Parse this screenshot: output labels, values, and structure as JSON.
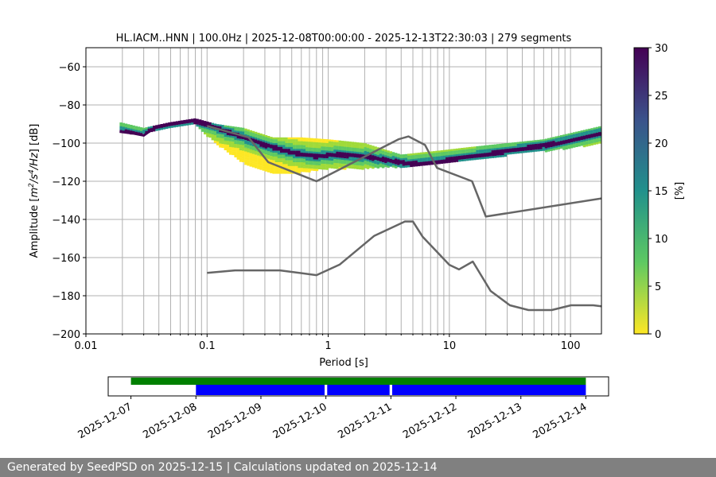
{
  "chart_data": [
    {
      "type": "heatmap",
      "title": "HL.IACM..HNN | 100.0Hz | 2025-12-08T00:00:00 - 2025-12-13T22:30:03 | 279 segments",
      "xlabel": "Period [s]",
      "ylabel_parts": [
        "Amplitude [",
        "m",
        "2",
        "/",
        "s",
        "4",
        "/",
        "Hz",
        "] [dB]"
      ],
      "x_scale": "log",
      "xlim": [
        0.01,
        180
      ],
      "ylim": [
        -200,
        -50
      ],
      "x_ticks": [
        {
          "value": 0.01,
          "label": "0.01"
        },
        {
          "value": 0.1,
          "label": "0.1"
        },
        {
          "value": 1,
          "label": "1"
        },
        {
          "value": 10,
          "label": "10"
        },
        {
          "value": 100,
          "label": "100"
        }
      ],
      "y_ticks": [
        {
          "value": -60,
          "label": "−60"
        },
        {
          "value": -80,
          "label": "−80"
        },
        {
          "value": -100,
          "label": "−100"
        },
        {
          "value": -120,
          "label": "−120"
        },
        {
          "value": -140,
          "label": "−140"
        },
        {
          "value": -160,
          "label": "−160"
        },
        {
          "value": -180,
          "label": "−180"
        },
        {
          "value": -200,
          "label": "−200"
        }
      ],
      "grid": "vertical lines at decade subdivisions, horizontal lines at y ticks",
      "colormap": "viridis_r",
      "colorbar": {
        "label": "[%]",
        "range": [
          0,
          30
        ],
        "ticks": [
          {
            "value": 0,
            "label": "0"
          },
          {
            "value": 5,
            "label": "5"
          },
          {
            "value": 10,
            "label": "10"
          },
          {
            "value": 15,
            "label": "15"
          },
          {
            "value": 20,
            "label": "20"
          },
          {
            "value": 25,
            "label": "25"
          },
          {
            "value": 30,
            "label": "30"
          }
        ]
      },
      "mode_curve": [
        {
          "period": 0.019,
          "db": -94
        },
        {
          "period": 0.025,
          "db": -95
        },
        {
          "period": 0.03,
          "db": -96
        },
        {
          "period": 0.035,
          "db": -93
        },
        {
          "period": 0.04,
          "db": -91
        },
        {
          "period": 0.05,
          "db": -90
        },
        {
          "period": 0.06,
          "db": -89
        },
        {
          "period": 0.075,
          "db": -88
        },
        {
          "period": 0.1,
          "db": -90
        },
        {
          "period": 0.13,
          "db": -93
        },
        {
          "period": 0.2,
          "db": -97
        },
        {
          "period": 0.3,
          "db": -101
        },
        {
          "period": 0.5,
          "db": -105
        },
        {
          "period": 0.8,
          "db": -107
        },
        {
          "period": 1.2,
          "db": -106
        },
        {
          "period": 2,
          "db": -107
        },
        {
          "period": 3,
          "db": -109
        },
        {
          "period": 5,
          "db": -111
        },
        {
          "period": 8,
          "db": -110
        },
        {
          "period": 12,
          "db": -108
        },
        {
          "period": 20,
          "db": -106
        },
        {
          "period": 40,
          "db": -103
        },
        {
          "period": 80,
          "db": -100
        },
        {
          "period": 180,
          "db": -95
        }
      ],
      "spread_band": [
        {
          "period": 0.019,
          "lower": -94,
          "upper": -89
        },
        {
          "period": 0.03,
          "lower": -95,
          "upper": -92
        },
        {
          "period": 0.05,
          "lower": -92,
          "upper": -89
        },
        {
          "period": 0.08,
          "lower": -90,
          "upper": -87
        },
        {
          "period": 0.12,
          "lower": -100,
          "upper": -90
        },
        {
          "period": 0.2,
          "lower": -110,
          "upper": -92
        },
        {
          "period": 0.35,
          "lower": -116,
          "upper": -97
        },
        {
          "period": 0.6,
          "lower": -115,
          "upper": -97
        },
        {
          "period": 1,
          "lower": -113,
          "upper": -98
        },
        {
          "period": 2,
          "lower": -113,
          "upper": -100
        },
        {
          "period": 4,
          "lower": -112,
          "upper": -106
        },
        {
          "period": 8,
          "lower": -111,
          "upper": -104
        },
        {
          "period": 15,
          "lower": -109,
          "upper": -102
        },
        {
          "period": 30,
          "lower": -106,
          "upper": -100
        },
        {
          "period": 60,
          "lower": -104,
          "upper": -98
        },
        {
          "period": 180,
          "lower": -100,
          "upper": -91
        }
      ],
      "nhnm": [
        {
          "period": 0.1,
          "db": -91
        },
        {
          "period": 0.22,
          "db": -97
        },
        {
          "period": 0.32,
          "db": -110
        },
        {
          "period": 0.8,
          "db": -120
        },
        {
          "period": 3.8,
          "db": -98
        },
        {
          "period": 4.6,
          "db": -96.5
        },
        {
          "period": 6.3,
          "db": -101
        },
        {
          "period": 7.9,
          "db": -113
        },
        {
          "period": 15.4,
          "db": -120
        },
        {
          "period": 20,
          "db": -138.5
        },
        {
          "period": 180,
          "db": -129
        }
      ],
      "nlnm": [
        {
          "period": 0.1,
          "db": -168
        },
        {
          "period": 0.17,
          "db": -166.7
        },
        {
          "period": 0.4,
          "db": -166.7
        },
        {
          "period": 0.8,
          "db": -169.2
        },
        {
          "period": 1.24,
          "db": -163.7
        },
        {
          "period": 2.4,
          "db": -148.6
        },
        {
          "period": 4.3,
          "db": -141.1
        },
        {
          "period": 5,
          "db": -141.1
        },
        {
          "period": 6,
          "db": -149
        },
        {
          "period": 10,
          "db": -163.8
        },
        {
          "period": 12,
          "db": -166.2
        },
        {
          "period": 15.6,
          "db": -162.1
        },
        {
          "period": 21.9,
          "db": -177.5
        },
        {
          "period": 31.6,
          "db": -185
        },
        {
          "period": 45,
          "db": -187.5
        },
        {
          "period": 70,
          "db": -187.5
        },
        {
          "period": 101,
          "db": -185
        },
        {
          "period": 154,
          "db": -185
        },
        {
          "period": 180,
          "db": -185.5
        }
      ]
    },
    {
      "type": "timeline",
      "x_ticks": [
        "2025-12-07",
        "2025-12-08",
        "2025-12-09",
        "2025-12-10",
        "2025-12-11",
        "2025-12-12",
        "2025-12-13",
        "2025-12-14"
      ],
      "xlim_days": [
        -0.35,
        7.35
      ],
      "green_bar": {
        "start_day": 0,
        "end_day": 7
      },
      "blue_segments": [
        {
          "start_day": 1,
          "end_day": 2.98
        },
        {
          "start_day": 3.02,
          "end_day": 3.98
        },
        {
          "start_day": 4.02,
          "end_day": 7
        }
      ],
      "colors": {
        "green": "#008000",
        "blue": "#0000ff"
      }
    }
  ],
  "footer": {
    "text": "Generated by SeedPSD on 2025-12-15 | Calculations updated on 2025-12-14"
  },
  "colors": {
    "noise_models": "#666666",
    "grid": "#b0b0b0",
    "footer_bg": "#808080"
  }
}
